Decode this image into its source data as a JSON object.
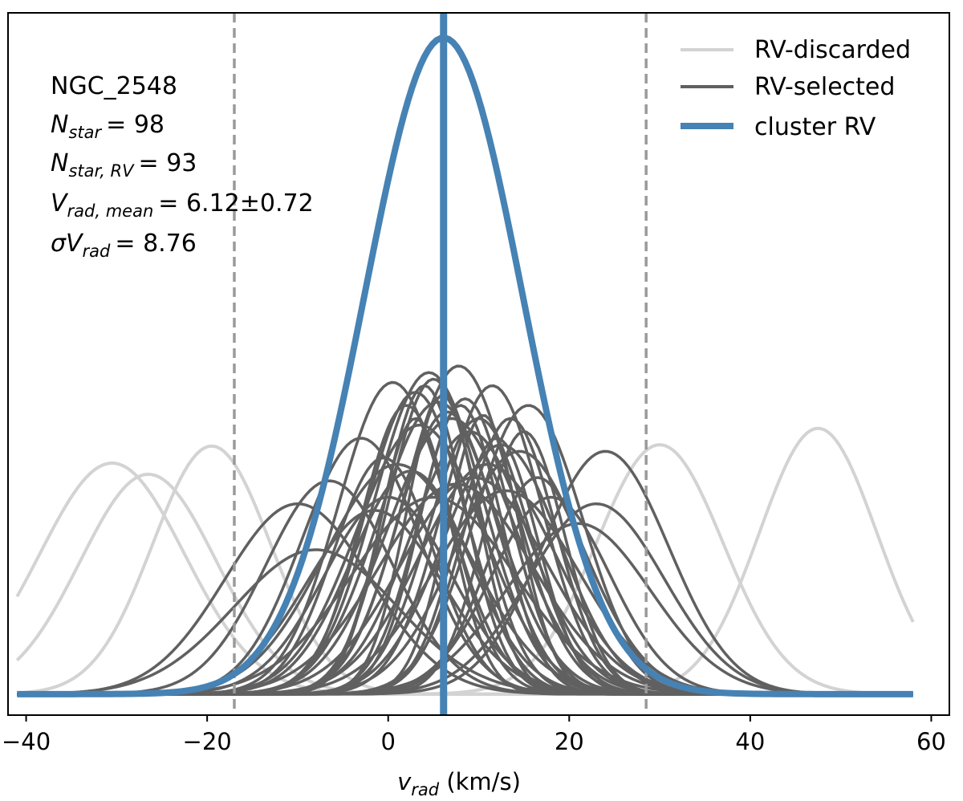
{
  "chart_data": {
    "type": "line",
    "title": "",
    "xlabel_var": "v",
    "xlabel_sub": "rad",
    "xlabel_unit": " (km/s)",
    "ylabel": "",
    "xlim": [
      -42,
      62
    ],
    "ylim": [
      0,
      1.07
    ],
    "xticks": [
      -40,
      -20,
      0,
      20,
      40,
      60
    ],
    "xtick_labels": [
      "−40",
      "−20",
      "0",
      "20",
      "40",
      "60"
    ],
    "grid": false,
    "legend_position": "top-right",
    "legend": [
      {
        "label": "RV-discarded",
        "color": "#d3d3d3"
      },
      {
        "label": "RV-selected",
        "color": "#606060"
      },
      {
        "label": "cluster RV",
        "color": "#4682b4"
      }
    ],
    "annotation": {
      "cluster": "NGC_2548",
      "nstar_var": "N",
      "nstar_sub": "star",
      "nstar_value": "98",
      "nstarrv_var": "N",
      "nstarrv_sub": "star, RV",
      "nstarrv_value": "93",
      "vmean_var": "V",
      "vmean_sub": "rad, mean",
      "vmean_value": "6.12±0.72",
      "sigma_var": "σV",
      "sigma_sub": "rad",
      "sigma_value": "8.76"
    },
    "x_range_drawn": [
      -41,
      58
    ],
    "cluster_rv": {
      "mean": 6.12,
      "err": 0.72,
      "sigma": 8.76,
      "peak": 1.0
    },
    "selection_bounds": [
      -17.0,
      28.5
    ],
    "discarded_series": [
      {
        "mean": -30.5,
        "sigma": 8.0,
        "amp": 0.352
      },
      {
        "mean": -26.5,
        "sigma": 7.5,
        "amp": 0.335
      },
      {
        "mean": -19.5,
        "sigma": 6.5,
        "amp": 0.378
      },
      {
        "mean": 30.0,
        "sigma": 7.0,
        "amp": 0.38
      },
      {
        "mean": 47.5,
        "sigma": 6.5,
        "amp": 0.405
      },
      {
        "mean": 12.0,
        "sigma": 3.0,
        "amp": 0.0
      }
    ],
    "selected_series": [
      {
        "mean": 0.5,
        "sigma": 6.0,
        "amp": 0.475
      },
      {
        "mean": 4.5,
        "sigma": 6.0,
        "amp": 0.49
      },
      {
        "mean": 7.8,
        "sigma": 6.0,
        "amp": 0.5
      },
      {
        "mean": 11.5,
        "sigma": 5.5,
        "amp": 0.47
      },
      {
        "mean": 15.5,
        "sigma": 6.0,
        "amp": 0.44
      },
      {
        "mean": 24.0,
        "sigma": 7.0,
        "amp": 0.37
      },
      {
        "mean": 23.0,
        "sigma": 7.5,
        "amp": 0.29
      },
      {
        "mean": 21.0,
        "sigma": 8.0,
        "amp": 0.26
      },
      {
        "mean": -10.0,
        "sigma": 8.0,
        "amp": 0.29
      },
      {
        "mean": -6.5,
        "sigma": 7.0,
        "amp": 0.325
      },
      {
        "mean": -3.0,
        "sigma": 6.5,
        "amp": 0.39
      },
      {
        "mean": -1.5,
        "sigma": 7.5,
        "amp": 0.28
      },
      {
        "mean": -8.0,
        "sigma": 9.0,
        "amp": 0.22
      },
      {
        "mean": 2.0,
        "sigma": 5.0,
        "amp": 0.44
      },
      {
        "mean": 3.0,
        "sigma": 5.5,
        "amp": 0.46
      },
      {
        "mean": 3.5,
        "sigma": 7.0,
        "amp": 0.41
      },
      {
        "mean": 5.0,
        "sigma": 5.0,
        "amp": 0.48
      },
      {
        "mean": 5.5,
        "sigma": 6.5,
        "amp": 0.445
      },
      {
        "mean": 6.5,
        "sigma": 5.5,
        "amp": 0.43
      },
      {
        "mean": 7.0,
        "sigma": 7.0,
        "amp": 0.42
      },
      {
        "mean": 8.5,
        "sigma": 5.0,
        "amp": 0.45
      },
      {
        "mean": 9.0,
        "sigma": 6.5,
        "amp": 0.4
      },
      {
        "mean": 10.0,
        "sigma": 5.5,
        "amp": 0.42
      },
      {
        "mean": 12.5,
        "sigma": 6.5,
        "amp": 0.38
      },
      {
        "mean": 13.5,
        "sigma": 5.0,
        "amp": 0.42
      },
      {
        "mean": 14.5,
        "sigma": 7.0,
        "amp": 0.37
      },
      {
        "mean": 16.5,
        "sigma": 5.5,
        "amp": 0.33
      },
      {
        "mean": 18.0,
        "sigma": 6.5,
        "amp": 0.3
      },
      {
        "mean": 1.0,
        "sigma": 8.0,
        "amp": 0.35
      },
      {
        "mean": -0.5,
        "sigma": 5.5,
        "amp": 0.36
      },
      {
        "mean": 4.0,
        "sigma": 4.5,
        "amp": 0.47
      },
      {
        "mean": 6.0,
        "sigma": 4.0,
        "amp": 0.455
      },
      {
        "mean": 8.0,
        "sigma": 4.5,
        "amp": 0.44
      },
      {
        "mean": 10.5,
        "sigma": 4.0,
        "amp": 0.425
      },
      {
        "mean": 2.5,
        "sigma": 6.5,
        "amp": 0.34
      },
      {
        "mean": 9.5,
        "sigma": 8.0,
        "amp": 0.33
      },
      {
        "mean": 11.0,
        "sigma": 7.5,
        "amp": 0.35
      },
      {
        "mean": 13.0,
        "sigma": 8.0,
        "amp": 0.31
      },
      {
        "mean": 5.0,
        "sigma": 9.0,
        "amp": 0.3
      },
      {
        "mean": 7.5,
        "sigma": 8.5,
        "amp": 0.32
      },
      {
        "mean": 0.0,
        "sigma": 7.0,
        "amp": 0.3
      },
      {
        "mean": 15.0,
        "sigma": 4.5,
        "amp": 0.4
      },
      {
        "mean": 3.0,
        "sigma": 4.0,
        "amp": 0.42
      },
      {
        "mean": 12.0,
        "sigma": 4.5,
        "amp": 0.39
      }
    ]
  }
}
